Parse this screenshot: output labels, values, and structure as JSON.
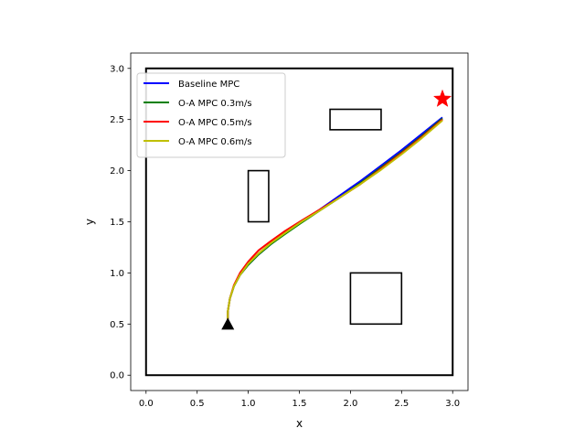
{
  "chart_data": {
    "type": "line",
    "title": "",
    "xlabel": "x",
    "ylabel": "y",
    "xlim": [
      -0.15,
      3.15
    ],
    "ylim": [
      -0.15,
      3.15
    ],
    "xticks": [
      "0.0",
      "0.5",
      "1.0",
      "1.5",
      "2.0",
      "2.5",
      "3.0"
    ],
    "yticks": [
      "0.0",
      "0.5",
      "1.0",
      "1.5",
      "2.0",
      "2.5",
      "3.0"
    ],
    "grid": false,
    "legend_position": "upper-left",
    "series": [
      {
        "name": "Baseline MPC",
        "color": "#0000ff",
        "x": [
          0.8,
          0.8,
          0.82,
          0.86,
          0.92,
          1.0,
          1.1,
          1.22,
          1.36,
          1.52,
          1.7,
          1.9,
          2.1,
          2.3,
          2.5,
          2.7,
          2.9
        ],
        "y": [
          0.5,
          0.62,
          0.75,
          0.87,
          0.98,
          1.08,
          1.18,
          1.28,
          1.39,
          1.5,
          1.62,
          1.76,
          1.9,
          2.05,
          2.2,
          2.36,
          2.52
        ]
      },
      {
        "name": "O-A MPC 0.3m/s",
        "color": "#008000",
        "x": [
          0.8,
          0.8,
          0.82,
          0.86,
          0.92,
          1.0,
          1.1,
          1.22,
          1.36,
          1.52,
          1.7,
          1.9,
          2.1,
          2.3,
          2.5,
          2.7,
          2.9
        ],
        "y": [
          0.5,
          0.62,
          0.75,
          0.87,
          0.98,
          1.08,
          1.18,
          1.28,
          1.38,
          1.49,
          1.61,
          1.74,
          1.88,
          2.03,
          2.18,
          2.34,
          2.51
        ]
      },
      {
        "name": "O-A MPC 0.5m/s",
        "color": "#ff0000",
        "x": [
          0.8,
          0.8,
          0.82,
          0.86,
          0.92,
          1.0,
          1.1,
          1.22,
          1.36,
          1.52,
          1.7,
          1.9,
          2.1,
          2.3,
          2.5,
          2.7,
          2.9
        ],
        "y": [
          0.5,
          0.62,
          0.75,
          0.88,
          1.0,
          1.11,
          1.22,
          1.31,
          1.41,
          1.51,
          1.62,
          1.74,
          1.87,
          2.02,
          2.17,
          2.33,
          2.5
        ]
      },
      {
        "name": "O-A MPC 0.6m/s",
        "color": "#bfbf00",
        "x": [
          0.8,
          0.8,
          0.82,
          0.86,
          0.92,
          1.0,
          1.1,
          1.22,
          1.36,
          1.52,
          1.7,
          1.9,
          2.1,
          2.3,
          2.5,
          2.7,
          2.9
        ],
        "y": [
          0.5,
          0.62,
          0.75,
          0.87,
          0.98,
          1.09,
          1.19,
          1.29,
          1.39,
          1.5,
          1.61,
          1.74,
          1.87,
          2.01,
          2.16,
          2.32,
          2.49
        ]
      }
    ],
    "boundary": {
      "x0": 0.0,
      "y0": 0.0,
      "x1": 3.0,
      "y1": 3.0,
      "color": "#000000"
    },
    "obstacles": [
      {
        "x0": 1.8,
        "y0": 2.4,
        "x1": 2.3,
        "y1": 2.6
      },
      {
        "x0": 1.0,
        "y0": 1.5,
        "x1": 1.2,
        "y1": 2.0
      },
      {
        "x0": 2.0,
        "y0": 0.5,
        "x1": 2.5,
        "y1": 1.0
      }
    ],
    "start": {
      "x": 0.8,
      "y": 0.5,
      "marker": "triangle",
      "color": "#000000"
    },
    "goal": {
      "x": 2.9,
      "y": 2.7,
      "marker": "star",
      "color": "#ff0000"
    }
  }
}
